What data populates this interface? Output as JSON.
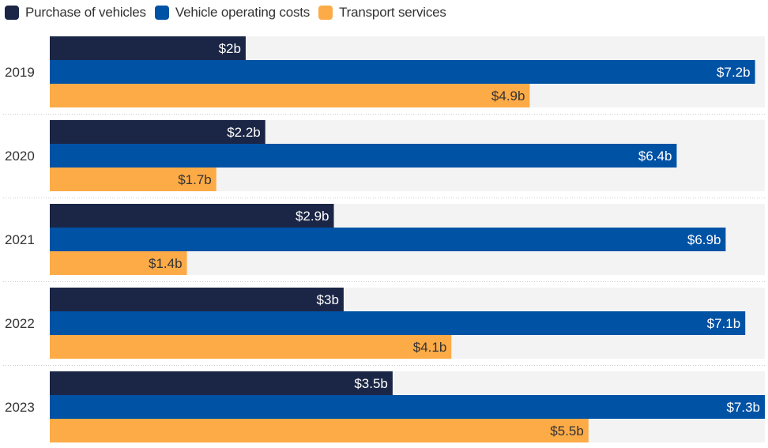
{
  "chart_data": {
    "type": "bar",
    "orientation": "horizontal",
    "title": "",
    "xlabel": "",
    "ylabel": "",
    "categories": [
      "2019",
      "2020",
      "2021",
      "2022",
      "2023"
    ],
    "series": [
      {
        "name": "Purchase of vehicles",
        "color": "#1b2646",
        "label_color": "#ffffff",
        "values": [
          2,
          2.2,
          2.9,
          3,
          3.5
        ],
        "labels": [
          "$2b",
          "$2.2b",
          "$2.9b",
          "$3b",
          "$3.5b"
        ]
      },
      {
        "name": "Vehicle operating costs",
        "color": "#0052a5",
        "label_color": "#ffffff",
        "values": [
          7.2,
          6.4,
          6.9,
          7.1,
          7.3
        ],
        "labels": [
          "$7.2b",
          "$6.4b",
          "$6.9b",
          "$7.1b",
          "$7.3b"
        ]
      },
      {
        "name": "Transport services",
        "color": "#fdab47",
        "label_color": "#333333",
        "values": [
          4.9,
          1.7,
          1.4,
          4.1,
          5.5
        ],
        "labels": [
          "$4.9b",
          "$1.7b",
          "$1.4b",
          "$4.1b",
          "$5.5b"
        ]
      }
    ],
    "unit": "$ billions",
    "xlim": [
      0,
      7.3
    ],
    "grid": false,
    "legend": "top-left",
    "background_band_color": "#f3f3f3",
    "separator_color": "#cccccc"
  }
}
